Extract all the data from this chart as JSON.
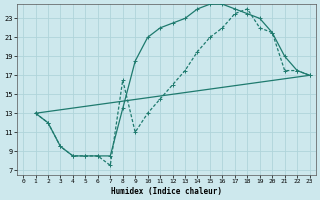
{
  "background_color": "#cde8ed",
  "grid_color": "#b0d4da",
  "line_color": "#1e7a6e",
  "xlabel": "Humidex (Indice chaleur)",
  "xlim": [
    -0.5,
    23.5
  ],
  "ylim": [
    6.5,
    24.5
  ],
  "xticks": [
    0,
    1,
    2,
    3,
    4,
    5,
    6,
    7,
    8,
    9,
    10,
    11,
    12,
    13,
    14,
    15,
    16,
    17,
    18,
    19,
    20,
    21,
    22,
    23
  ],
  "yticks": [
    7,
    9,
    11,
    13,
    15,
    17,
    19,
    21,
    23
  ],
  "line1_x": [
    1,
    2,
    3,
    4,
    5,
    6,
    7,
    8,
    9,
    10,
    11,
    12,
    13,
    14,
    15,
    16,
    17,
    18,
    19,
    20,
    21,
    22,
    23
  ],
  "line1_y": [
    13,
    12,
    9.5,
    8.5,
    8.5,
    8.5,
    8.5,
    13.5,
    18.5,
    21,
    22,
    22.5,
    23,
    24,
    24.5,
    24.5,
    24,
    23.5,
    23,
    21.5,
    19,
    17.5,
    17
  ],
  "line2_x": [
    1,
    2,
    3,
    4,
    5,
    6,
    7,
    8,
    9,
    10,
    11,
    12,
    13,
    14,
    15,
    16,
    17,
    18,
    19,
    20,
    21,
    22,
    23
  ],
  "line2_y": [
    13,
    12,
    9.5,
    8.5,
    8.5,
    8.5,
    7.5,
    16.5,
    11,
    13,
    14.5,
    16,
    17.5,
    19.5,
    21,
    22,
    23.5,
    24,
    22,
    21.5,
    17.5,
    17.5,
    17
  ],
  "line3_x": [
    1,
    23
  ],
  "line3_y": [
    13,
    17
  ]
}
